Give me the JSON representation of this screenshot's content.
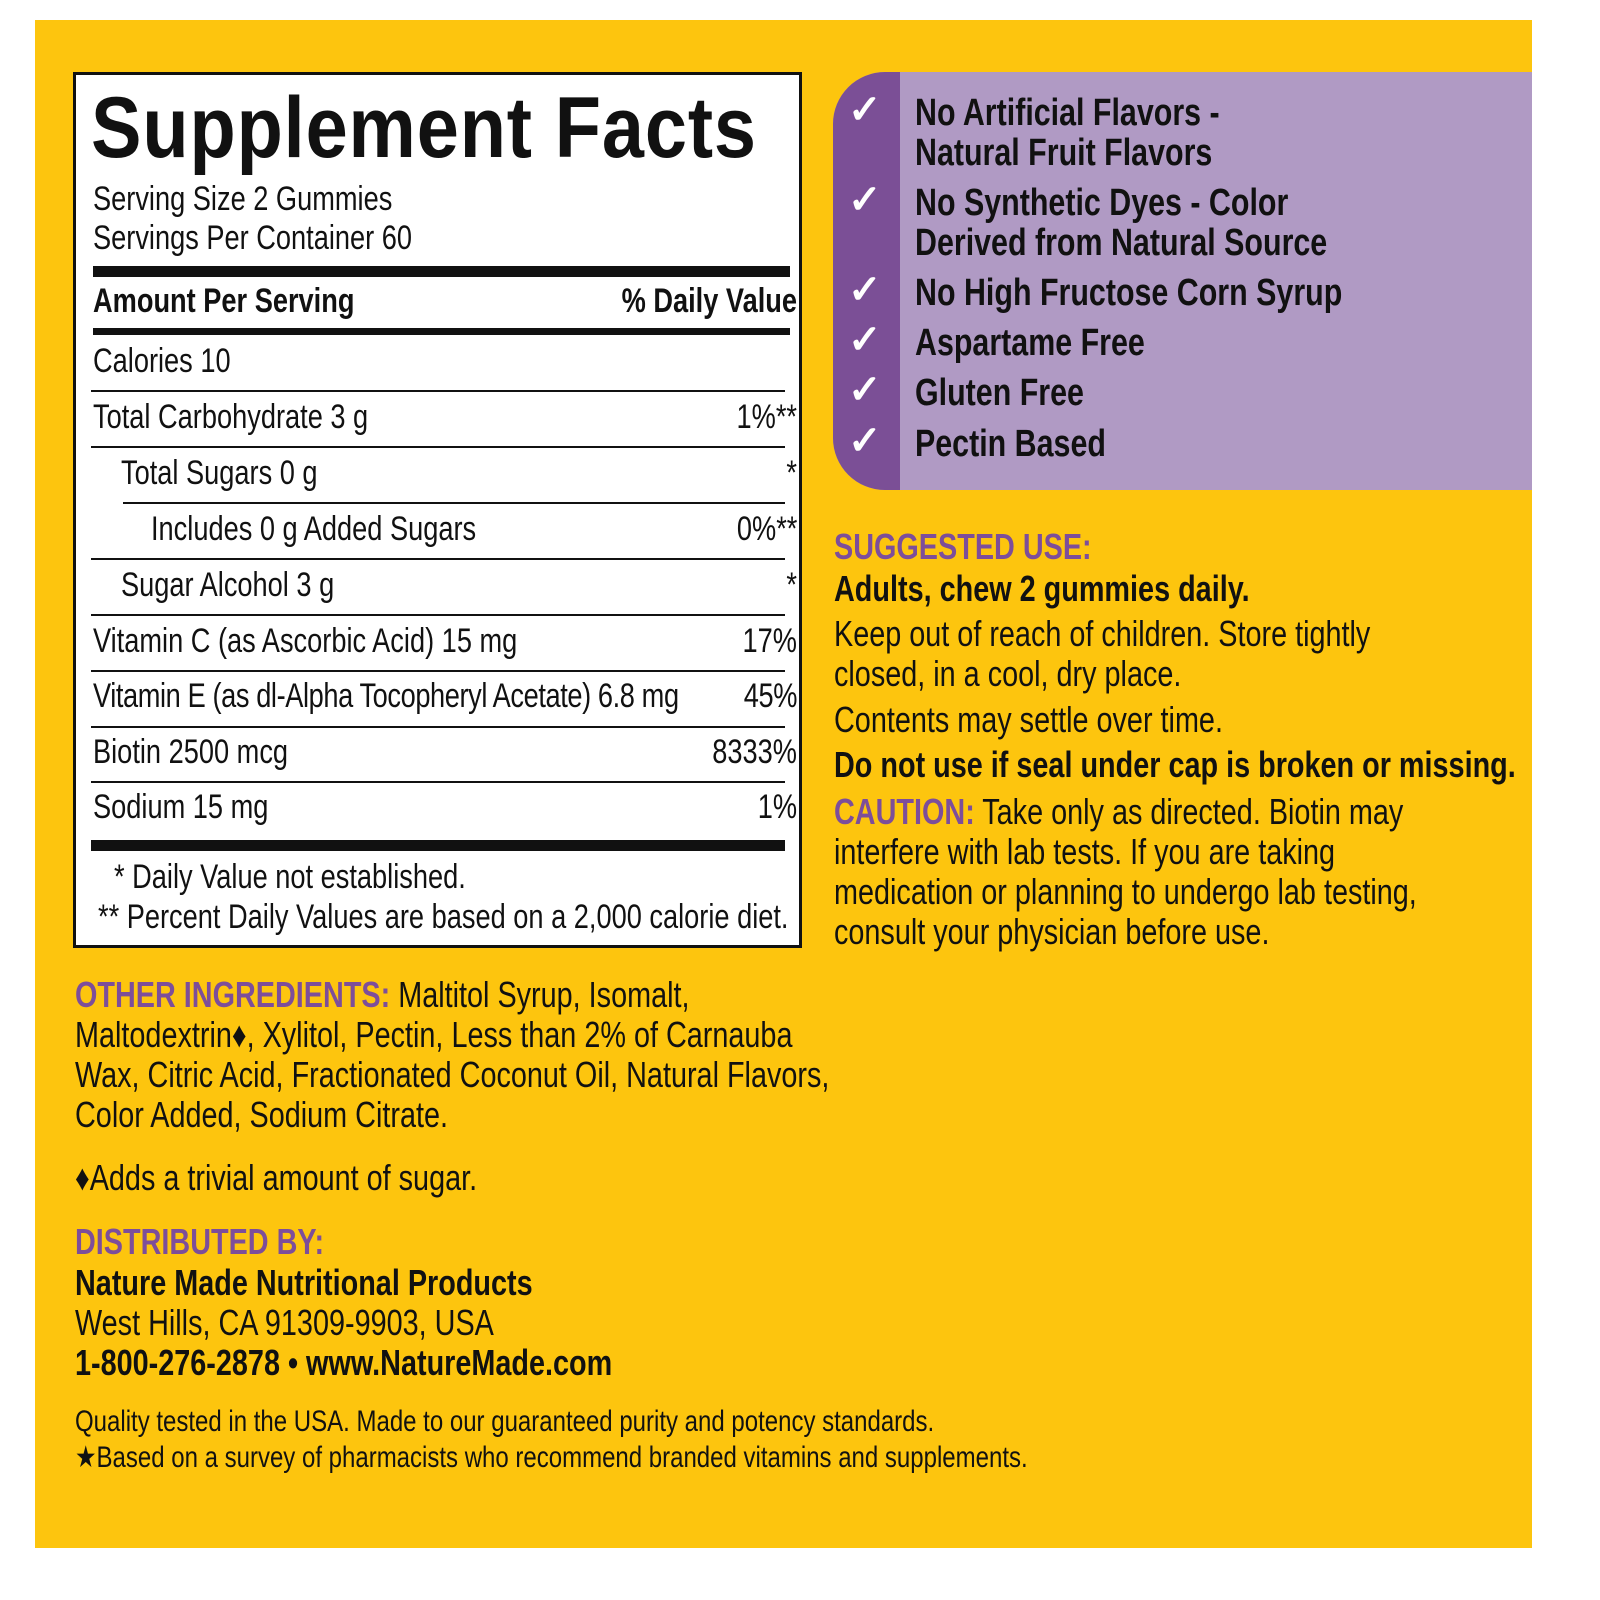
{
  "colors": {
    "background": "#FDC50E",
    "claims_panel": "#B09AC4",
    "claims_strip": "#7B4F96",
    "heading": "#7D4E9A"
  },
  "facts": {
    "title": "Supplement Facts",
    "serving_size": "Serving Size 2 Gummies",
    "servings_per_container": "Servings Per Container 60",
    "header_amount": "Amount Per Serving",
    "header_dv": "% Daily Value",
    "rows": [
      {
        "name": "Calories  10",
        "dv": ""
      },
      {
        "name": "Total Carbohydrate  3 g",
        "dv": "1%**"
      },
      {
        "name": "Total Sugars  0 g",
        "dv": "*"
      },
      {
        "name": "Includes 0 g Added Sugars",
        "dv": "0%**"
      },
      {
        "name": "Sugar Alcohol  3 g",
        "dv": "*"
      },
      {
        "name": "Vitamin C (as Ascorbic Acid)  15 mg",
        "dv": "17%"
      },
      {
        "name": "Vitamin E (as dl-Alpha Tocopheryl Acetate)  6.8 mg",
        "dv": "45%"
      },
      {
        "name": "Biotin  2500 mcg",
        "dv": "8333%"
      },
      {
        "name": "Sodium  15 mg",
        "dv": "1%"
      }
    ],
    "footnote1": "* Daily Value not established.",
    "footnote2": "** Percent Daily Values are based on a 2,000 calorie diet."
  },
  "claims": {
    "icon": "checkmark-icon",
    "items": [
      [
        "No Artificial Flavors -",
        "Natural Fruit Flavors"
      ],
      [
        "No Synthetic Dyes - Color",
        "Derived from Natural Source"
      ],
      [
        "No High Fructose Corn Syrup"
      ],
      [
        "Aspartame Free"
      ],
      [
        "Gluten Free"
      ],
      [
        "Pectin Based"
      ]
    ]
  },
  "suggested_use": {
    "heading": "SUGGESTED USE:",
    "directions": "Adults, chew 2 gummies daily.",
    "storage": [
      "Keep out of reach of children. Store tightly",
      "closed, in a cool, dry place."
    ],
    "settle": "Contents may settle over time.",
    "seal": "Do not use if seal under cap is broken or missing.",
    "caution_heading": "CAUTION:",
    "caution": [
      " Take only as directed. Biotin may",
      "interfere with lab tests. If you are taking",
      "medication or planning to undergo lab testing,",
      "consult your physician before use."
    ]
  },
  "ingredients": {
    "heading": "OTHER INGREDIENTS:",
    "lines": [
      " Maltitol Syrup, Isomalt,",
      "Maltodextrin♦, Xylitol, Pectin, Less than 2% of Carnauba",
      "Wax, Citric Acid, Fractionated Coconut Oil, Natural Flavors,",
      "Color Added, Sodium Citrate."
    ],
    "note": "♦Adds a trivial amount of sugar."
  },
  "distributor": {
    "heading": "DISTRIBUTED BY:",
    "name": "Nature Made Nutritional Products",
    "address": "West Hills, CA 91309-9903, USA",
    "contact": "1-800-276-2878 • www.NatureMade.com"
  },
  "quality": {
    "line1": "Quality tested in the USA. Made to our guaranteed purity and potency standards.",
    "line2": "★Based on a survey of pharmacists who recommend branded vitamins and supplements."
  }
}
